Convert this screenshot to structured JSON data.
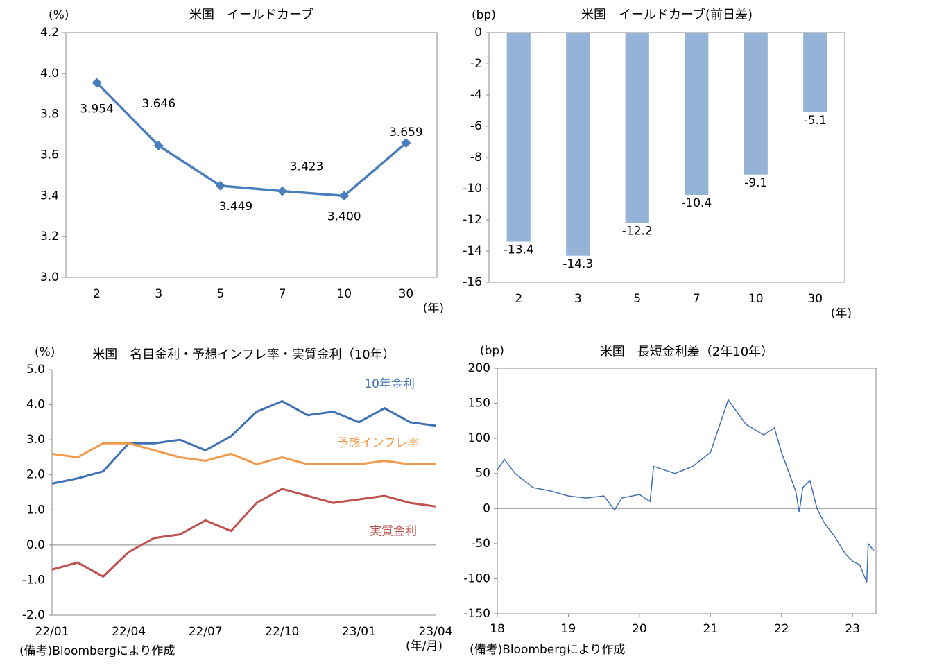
{
  "chart_data": [
    {
      "type": "line",
      "title": "米国　イールドカーブ",
      "y_label": "(%)",
      "x_label": "(年)",
      "categories": [
        "2",
        "3",
        "5",
        "7",
        "10",
        "30"
      ],
      "values": [
        3.954,
        3.646,
        3.449,
        3.423,
        3.4,
        3.659
      ],
      "value_labels": [
        "3.954",
        "3.646",
        "3.449",
        "3.423",
        "3.400",
        "3.659"
      ],
      "color": "#4a7ebb",
      "ylim": [
        3.0,
        4.2
      ],
      "yticks": [
        {
          "value": 3.0,
          "label": "3.0"
        },
        3.2,
        3.4,
        3.6,
        3.8,
        {
          "value": 4.0,
          "label": "4.0"
        },
        4.2
      ]
    },
    {
      "type": "bar",
      "title": "米国　イールドカーブ(前日差)",
      "y_label": "(bp)",
      "x_label": "(年)",
      "categories": [
        "2",
        "3",
        "5",
        "7",
        "10",
        "30"
      ],
      "values": [
        -13.4,
        -14.3,
        -12.2,
        -10.4,
        -9.1,
        -5.1
      ],
      "color": "#95b3d7",
      "ylim": [
        -16,
        0
      ],
      "yticks": [
        -16,
        -14,
        -12,
        -10,
        -8,
        -6,
        -4,
        -2,
        0
      ]
    },
    {
      "type": "line",
      "title": "米国　名目金利・予想インフレ率・実質金利（10年）",
      "y_label": "(%)",
      "x_label": "(年/月)",
      "note": "(備考)Bloombergにより作成",
      "categories": [
        "22/01",
        null,
        null,
        "22/04",
        null,
        null,
        "22/07",
        null,
        null,
        "22/10",
        null,
        null,
        "23/01",
        null,
        null,
        "23/04"
      ],
      "series": [
        {
          "name": "10年金利",
          "color": "#3e70b4",
          "values": [
            1.75,
            1.9,
            2.1,
            2.9,
            2.9,
            3.0,
            2.7,
            3.1,
            3.8,
            4.1,
            3.7,
            3.8,
            3.5,
            3.9,
            3.5,
            3.4
          ]
        },
        {
          "name": "予想インフレ率",
          "color": "#f39a4a",
          "values": [
            2.6,
            2.5,
            2.9,
            2.9,
            2.7,
            2.5,
            2.4,
            2.6,
            2.3,
            2.5,
            2.3,
            2.3,
            2.3,
            2.4,
            2.3,
            2.3
          ]
        },
        {
          "name": "実質金利",
          "color": "#c0504d",
          "values": [
            -0.7,
            -0.5,
            -0.9,
            -0.2,
            0.2,
            0.3,
            0.7,
            0.4,
            1.2,
            1.6,
            1.4,
            1.2,
            1.3,
            1.4,
            1.2,
            1.1
          ]
        }
      ],
      "ylim": [
        -2.0,
        5.0
      ],
      "yticks": [
        {
          "value": -2.0,
          "label": "-2.0"
        },
        {
          "value": -1.0,
          "label": "-1.0"
        },
        {
          "value": 0.0,
          "label": "0.0"
        },
        {
          "value": 1.0,
          "label": "1.0"
        },
        {
          "value": 2.0,
          "label": "2.0"
        },
        {
          "value": 3.0,
          "label": "3.0"
        },
        {
          "value": 4.0,
          "label": "4.0"
        },
        {
          "value": 5.0,
          "label": "5.0"
        }
      ]
    },
    {
      "type": "xyline",
      "title": "米国　長短金利差（2年10年）",
      "y_label": "(bp)",
      "note": "(備考)Bloombergにより作成",
      "x": [
        18.0,
        18.1,
        18.25,
        18.5,
        18.75,
        19.0,
        19.25,
        19.5,
        19.65,
        19.75,
        20.0,
        20.15,
        20.2,
        20.5,
        20.75,
        21.0,
        21.2,
        21.25,
        21.5,
        21.75,
        21.9,
        22.0,
        22.2,
        22.25,
        22.3,
        22.4,
        22.5,
        22.6,
        22.75,
        22.9,
        23.0,
        23.1,
        23.2,
        23.22,
        23.3
      ],
      "values": [
        55,
        70,
        50,
        30,
        25,
        18,
        15,
        18,
        -2,
        15,
        20,
        10,
        60,
        50,
        60,
        80,
        140,
        155,
        120,
        105,
        115,
        80,
        25,
        -5,
        30,
        40,
        0,
        -20,
        -40,
        -65,
        -75,
        -80,
        -105,
        -50,
        -60
      ],
      "color": "#3e70b4",
      "xlim": [
        18,
        23.33
      ],
      "xticks": [
        18,
        19,
        20,
        21,
        22,
        23
      ],
      "ylim": [
        -150,
        200
      ],
      "yticks": [
        -150,
        -100,
        -50,
        0,
        50,
        100,
        150,
        200
      ]
    }
  ]
}
